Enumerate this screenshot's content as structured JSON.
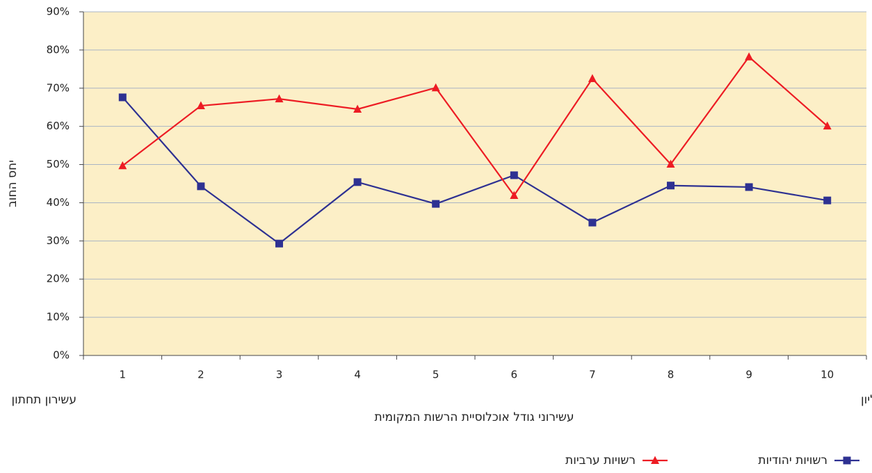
{
  "chart_data": {
    "type": "line",
    "ylabel": "יחס החוב",
    "xlabel": "עשירוני גודל אוכלוסיית הרשות המקומית",
    "annotations": [
      "עשירון תחתון",
      "עשירון  עליון"
    ],
    "categories": [
      "1",
      "2",
      "3",
      "4",
      "5",
      "6",
      "7",
      "8",
      "9",
      "10"
    ],
    "series": [
      {
        "name": "רשויות יהודיות",
        "color": "#2e3192",
        "marker": "square",
        "values": [
          67.6,
          44.3,
          29.3,
          45.4,
          39.7,
          47.2,
          34.8,
          44.5,
          44.1,
          40.6
        ]
      },
      {
        "name": "רשויות ערביות",
        "color": "#ed1c24",
        "marker": "triangle",
        "values": [
          49.7,
          65.4,
          67.2,
          64.5,
          70.1,
          41.9,
          72.5,
          50.1,
          78.2,
          60.1
        ]
      }
    ],
    "ylim": [
      0,
      90
    ],
    "yticks": [
      {
        "value": 0,
        "label": "0%"
      },
      {
        "value": 10,
        "label": "10%"
      },
      {
        "value": 20,
        "label": "20%"
      },
      {
        "value": 30,
        "label": "30%"
      },
      {
        "value": 40,
        "label": "40%"
      },
      {
        "value": 50,
        "label": "50%"
      },
      {
        "value": 60,
        "label": "60%"
      },
      {
        "value": 70,
        "label": "70%"
      },
      {
        "value": 80,
        "label": "80%"
      },
      {
        "value": 90,
        "label": "90%"
      }
    ],
    "grid": true,
    "legend": "bottom",
    "background": "#fcefc7"
  }
}
